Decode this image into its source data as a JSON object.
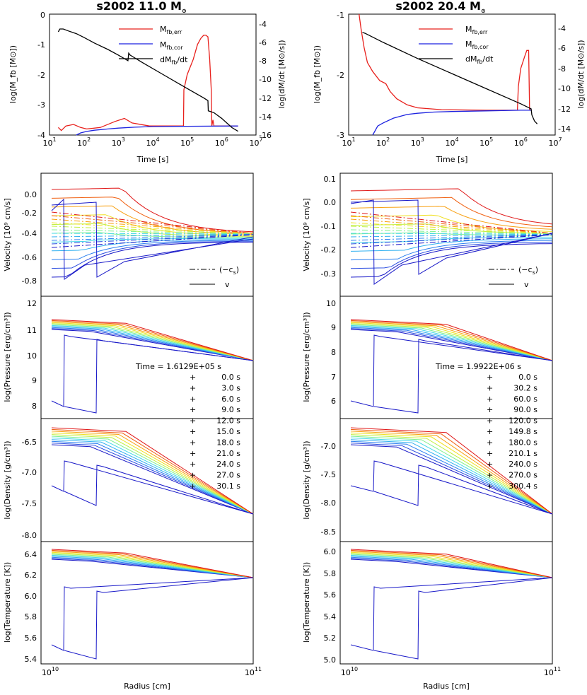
{
  "chart_data": [
    {
      "type": "line",
      "id": "fb-left",
      "title": "s2002 11.0 M⊙",
      "xlabel": "Time [s]",
      "ylabel": "log(M_fb [M⊙])",
      "y2label": "log(dM/dt [M⊙/s])",
      "xscale": "log",
      "xlim": [
        10,
        10000000
      ],
      "ylim": [
        -4,
        0
      ],
      "y2lim": [
        -16,
        -3
      ],
      "xticks": [
        "10^1",
        "10^2",
        "10^3",
        "10^4",
        "10^5",
        "10^6",
        "10^7"
      ],
      "yticks": [
        "-4",
        "-3",
        "-2",
        "-1",
        "0"
      ],
      "y2ticks": [
        "-16",
        "-14",
        "-12",
        "-10",
        "-8",
        "-6",
        "-4"
      ],
      "legend": [
        "M_fb,err",
        "M_fb,cor",
        "dM_fb/dt"
      ],
      "series": [
        {
          "name": "M_fb,err",
          "color": "#e8201c",
          "x": [
            18,
            22,
            30,
            50,
            80,
            120,
            300,
            800,
            1500,
            2500,
            8000,
            50000,
            78000,
            80000,
            100000,
            150000,
            200000,
            250000,
            300000,
            350000,
            400000,
            450000,
            500000,
            520000,
            560000,
            600000,
            800000,
            1500000,
            3000000
          ],
          "y": [
            -3.75,
            -3.85,
            -3.7,
            -3.65,
            -3.75,
            -3.8,
            -3.75,
            -3.55,
            -3.45,
            -3.6,
            -3.7,
            -3.7,
            -3.7,
            -2.5,
            -2.0,
            -1.5,
            -1.0,
            -0.8,
            -0.7,
            -0.7,
            -0.75,
            -1.5,
            -2.5,
            -3.7,
            -3.5,
            -3.7,
            -3.7,
            -3.7,
            -3.7
          ]
        },
        {
          "name": "M_fb,cor",
          "color": "#1c22e0",
          "x": [
            60,
            80,
            120,
            200,
            500,
            1000,
            3000,
            10000,
            100000,
            3000000
          ],
          "y": [
            -4.0,
            -3.93,
            -3.88,
            -3.84,
            -3.8,
            -3.77,
            -3.74,
            -3.72,
            -3.71,
            -3.7
          ]
        },
        {
          "name": "dM_fb/dt",
          "color": "#000000",
          "x": [
            18,
            20,
            25,
            35,
            60,
            100,
            200,
            500,
            1000,
            1900,
            2000,
            2200,
            5000,
            20000,
            100000,
            300000,
            400000,
            410000,
            600000,
            1000000,
            2000000,
            3000000
          ],
          "y2": [
            -4.9,
            -4.6,
            -4.6,
            -4.8,
            -5.1,
            -5.5,
            -6.1,
            -6.8,
            -7.4,
            -8.0,
            -7.2,
            -7.4,
            -8.2,
            -9.5,
            -11.0,
            -12.0,
            -12.3,
            -13.4,
            -13.6,
            -14.2,
            -15.2,
            -15.6
          ]
        }
      ]
    },
    {
      "type": "line",
      "id": "fb-right",
      "title": "s2002 20.4 M⊙",
      "xlabel": "Time [s]",
      "ylabel": "log(M_fb [M⊙])",
      "y2label": "log(dM/dt [M⊙/s])",
      "xscale": "log",
      "xlim": [
        10,
        10000000
      ],
      "ylim": [
        -3,
        -1
      ],
      "y2lim": [
        -15,
        -3
      ],
      "xticks": [
        "10^1",
        "10^2",
        "10^3",
        "10^4",
        "10^5",
        "10^6",
        "10^7"
      ],
      "yticks": [
        "-3",
        "-2",
        "-1"
      ],
      "y2ticks": [
        "-14",
        "-12",
        "-10",
        "-8",
        "-6",
        "-4"
      ],
      "legend": [
        "M_fb,err",
        "M_fb,cor",
        "dM_fb/dt"
      ],
      "series": [
        {
          "name": "M_fb,err",
          "color": "#e8201c",
          "x": [
            20,
            23,
            28,
            35,
            50,
            80,
            120,
            160,
            250,
            500,
            1000,
            5000,
            100000,
            800000,
            850000,
            1000000,
            1300000,
            1500000,
            1700000,
            1800000,
            2000000
          ],
          "y": [
            -1.0,
            -1.25,
            -1.55,
            -1.8,
            -1.95,
            -2.1,
            -2.15,
            -2.28,
            -2.4,
            -2.5,
            -2.55,
            -2.58,
            -2.59,
            -2.59,
            -2.2,
            -1.9,
            -1.7,
            -1.6,
            -1.6,
            -2.58,
            -2.59
          ]
        },
        {
          "name": "M_fb,cor",
          "color": "#1c22e0",
          "x": [
            50,
            70,
            100,
            200,
            500,
            1000,
            3000,
            10000,
            100000,
            1000000,
            2000000
          ],
          "y": [
            -3.0,
            -2.85,
            -2.8,
            -2.72,
            -2.66,
            -2.64,
            -2.62,
            -2.61,
            -2.6,
            -2.59,
            -2.59
          ]
        },
        {
          "name": "dM_fb/dt",
          "color": "#000000",
          "x": [
            25,
            30,
            100,
            1000,
            10000,
            100000,
            1000000,
            2000000,
            2100000,
            2500000,
            3000000
          ],
          "y2": [
            -4.8,
            -4.9,
            -5.8,
            -7.4,
            -8.9,
            -10.4,
            -11.9,
            -12.4,
            -13.0,
            -13.6,
            -13.9
          ]
        }
      ]
    }
  ],
  "left": {
    "title": {
      "main": "s2002 11.0 M",
      "sym": "⊙"
    },
    "top": {
      "xlabel": "Time [s]",
      "ylabel": "log(M_fb [M⊙])",
      "y2label": "log(dM/dt [M⊙/s])",
      "xticks": [
        "10",
        "10",
        "10",
        "10",
        "10",
        "10",
        "10"
      ],
      "xexp": [
        "1",
        "2",
        "3",
        "4",
        "5",
        "6",
        "7"
      ],
      "yticks": [
        "-4",
        "-3",
        "-2",
        "-1",
        "0"
      ],
      "y2ticks": [
        "-16",
        "-14",
        "-12",
        "-10",
        "-8",
        "-6",
        "-4"
      ]
    },
    "vel": {
      "ylabel": "Velocity [10⁹ cm/s]",
      "yticks": [
        "-0.8",
        "-0.6",
        "-0.4",
        "-0.2",
        "0.0"
      ]
    },
    "pres": {
      "ylabel": "log(Pressure [erg/cm³])",
      "yticks": [
        "8",
        "9",
        "10",
        "11",
        "12"
      ]
    },
    "dens": {
      "ylabel": "log(Density [g/cm³])",
      "yticks": [
        "-8.0",
        "-7.5",
        "-7.0",
        "-6.5"
      ]
    },
    "temp": {
      "ylabel": "log(Temperature [K])",
      "yticks": [
        "5.4",
        "5.6",
        "5.8",
        "6.0",
        "6.2",
        "6.4"
      ]
    },
    "xlabel": "Radius [cm]",
    "xticks": [
      "10",
      "10"
    ],
    "xexp": [
      "10",
      "11"
    ],
    "time_label": "Time = 1.6129E+05 s",
    "times": [
      "0.0 s",
      "3.0 s",
      "6.0 s",
      "9.0 s",
      "12.0 s",
      "15.0 s",
      "18.0 s",
      "21.0 s",
      "24.0 s",
      "27.0 s",
      "30.1 s"
    ]
  },
  "right": {
    "title": {
      "main": "s2002 20.4 M",
      "sym": "⊙"
    },
    "top": {
      "xlabel": "Time [s]",
      "ylabel": "log(M_fb [M⊙])",
      "y2label": "log(dM/dt [M⊙/s])",
      "xticks": [
        "10",
        "10",
        "10",
        "10",
        "10",
        "10",
        "10"
      ],
      "xexp": [
        "1",
        "2",
        "3",
        "4",
        "5",
        "6",
        "7"
      ],
      "yticks": [
        "-3",
        "-2",
        "-1"
      ],
      "y2ticks": [
        "-14",
        "-12",
        "-10",
        "-8",
        "-6",
        "-4"
      ]
    },
    "vel": {
      "ylabel": "Velocity [10⁹ cm/s]",
      "yticks": [
        "-0.3",
        "-0.2",
        "-0.1",
        "0.0",
        "0.1"
      ]
    },
    "pres": {
      "ylabel": "log(Pressure [erg/cm³])",
      "yticks": [
        "6",
        "7",
        "8",
        "9",
        "10"
      ]
    },
    "dens": {
      "ylabel": "log(Density [g/cm³])",
      "yticks": [
        "-8.5",
        "-8.0",
        "-7.5",
        "-7.0"
      ]
    },
    "temp": {
      "ylabel": "log(Temperature [K])",
      "yticks": [
        "5.0",
        "5.2",
        "5.4",
        "5.6",
        "5.8",
        "6.0"
      ]
    },
    "xlabel": "Radius [cm]",
    "xticks": [
      "10",
      "10"
    ],
    "xexp": [
      "10",
      "11"
    ],
    "time_label": "Time = 1.9922E+06 s",
    "times": [
      "0.0 s",
      "30.2 s",
      "60.0 s",
      "90.0 s",
      "120.0 s",
      "149.8 s",
      "180.0 s",
      "210.1 s",
      "240.0 s",
      "270.0 s",
      "300.4 s"
    ]
  },
  "legend_labels": {
    "err": "M",
    "err_sub": "fb,err",
    "cor": "M",
    "cor_sub": "fb,cor",
    "rate": "dM",
    "rate_sub": "fb",
    "rate_tail": "/dt",
    "cs": "(−c",
    "cs_sub": "s",
    "cs_tail": ")",
    "v": "v"
  },
  "profile_colors": [
    "#1818c8",
    "#2a4ce0",
    "#2b80f0",
    "#30b0f0",
    "#45d8e8",
    "#80f090",
    "#c0f040",
    "#f0e020",
    "#f8a010",
    "#f06010",
    "#e01818"
  ]
}
